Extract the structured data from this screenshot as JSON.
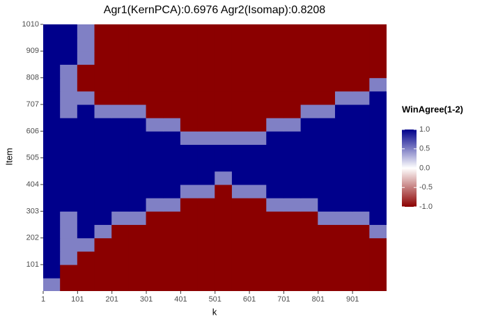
{
  "chart_data": {
    "type": "heatmap",
    "title": "Agr1(KernPCA):0.6976 Agr2(Isomap):0.8208",
    "x_label": "k",
    "y_label": "Item",
    "x": [
      25,
      75,
      125,
      175,
      225,
      275,
      325,
      375,
      425,
      475,
      525,
      575,
      625,
      675,
      725,
      775,
      825,
      875,
      925,
      975
    ],
    "y": [
      25.25,
      75.75,
      126.25,
      176.75,
      227.25,
      277.75,
      328.25,
      378.75,
      429.25,
      479.75,
      530.25,
      580.75,
      631.25,
      681.75,
      732.25,
      782.75,
      833.25,
      883.75,
      934.25,
      984.75
    ],
    "z": [
      [
        0.5,
        -1,
        -1,
        -1,
        -1,
        -1,
        -1,
        -1,
        -1,
        -1,
        -1,
        -1,
        -1,
        -1,
        -1,
        -1,
        -1,
        -1,
        -1,
        -1
      ],
      [
        1,
        -1,
        -1,
        -1,
        -1,
        -1,
        -1,
        -1,
        -1,
        -1,
        -1,
        -1,
        -1,
        -1,
        -1,
        -1,
        -1,
        -1,
        -1,
        -1
      ],
      [
        1,
        0.5,
        -1,
        -1,
        -1,
        -1,
        -1,
        -1,
        -1,
        -1,
        -1,
        -1,
        -1,
        -1,
        -1,
        -1,
        -1,
        -1,
        -1,
        -1
      ],
      [
        1,
        0.5,
        0.5,
        -1,
        -1,
        -1,
        -1,
        -1,
        -1,
        -1,
        -1,
        -1,
        -1,
        -1,
        -1,
        -1,
        -1,
        -1,
        -1,
        -1
      ],
      [
        1,
        0.5,
        1,
        0.5,
        -1,
        -1,
        -1,
        -1,
        -1,
        -1,
        -1,
        -1,
        -1,
        -1,
        -1,
        -1,
        -1,
        -1,
        -1,
        0.5
      ],
      [
        1,
        0.5,
        1,
        1,
        0.5,
        0.5,
        -1,
        -1,
        -1,
        -1,
        -1,
        -1,
        -1,
        -1,
        -1,
        -1,
        0.5,
        0.5,
        0.5,
        1
      ],
      [
        1,
        1,
        1,
        1,
        1,
        1,
        0.5,
        0.5,
        -1,
        -1,
        -1,
        -1,
        -1,
        0.5,
        0.5,
        0.5,
        1,
        1,
        1,
        1
      ],
      [
        1,
        1,
        1,
        1,
        1,
        1,
        1,
        1,
        0.5,
        0.5,
        -1,
        0.5,
        0.5,
        1,
        1,
        1,
        1,
        1,
        1,
        1
      ],
      [
        1,
        1,
        1,
        1,
        1,
        1,
        1,
        1,
        1,
        1,
        0.5,
        1,
        1,
        1,
        1,
        1,
        1,
        1,
        1,
        1
      ],
      [
        1,
        1,
        1,
        1,
        1,
        1,
        1,
        1,
        1,
        1,
        1,
        1,
        1,
        1,
        1,
        1,
        1,
        1,
        1,
        1
      ],
      [
        1,
        1,
        1,
        1,
        1,
        1,
        1,
        1,
        1,
        1,
        1,
        1,
        1,
        1,
        1,
        1,
        1,
        1,
        1,
        1
      ],
      [
        1,
        1,
        1,
        1,
        1,
        1,
        1,
        1,
        0.5,
        0.5,
        0.5,
        0.5,
        0.5,
        1,
        1,
        1,
        1,
        1,
        1,
        1
      ],
      [
        1,
        1,
        1,
        1,
        1,
        1,
        0.5,
        0.5,
        -1,
        -1,
        -1,
        -1,
        -1,
        0.5,
        0.5,
        1,
        1,
        1,
        1,
        1
      ],
      [
        1,
        0.5,
        1,
        0.5,
        0.5,
        0.5,
        -1,
        -1,
        -1,
        -1,
        -1,
        -1,
        -1,
        -1,
        -1,
        0.5,
        0.5,
        1,
        1,
        1
      ],
      [
        1,
        0.5,
        0.5,
        -1,
        -1,
        -1,
        -1,
        -1,
        -1,
        -1,
        -1,
        -1,
        -1,
        -1,
        -1,
        -1,
        -1,
        0.5,
        0.5,
        1
      ],
      [
        1,
        0.5,
        -1,
        -1,
        -1,
        -1,
        -1,
        -1,
        -1,
        -1,
        -1,
        -1,
        -1,
        -1,
        -1,
        -1,
        -1,
        -1,
        -1,
        0.5
      ],
      [
        1,
        0.5,
        -1,
        -1,
        -1,
        -1,
        -1,
        -1,
        -1,
        -1,
        -1,
        -1,
        -1,
        -1,
        -1,
        -1,
        -1,
        -1,
        -1,
        -1
      ],
      [
        1,
        1,
        0.5,
        -1,
        -1,
        -1,
        -1,
        -1,
        -1,
        -1,
        -1,
        -1,
        -1,
        -1,
        -1,
        -1,
        -1,
        -1,
        -1,
        -1
      ],
      [
        1,
        1,
        0.5,
        -1,
        -1,
        -1,
        -1,
        -1,
        -1,
        -1,
        -1,
        -1,
        -1,
        -1,
        -1,
        -1,
        -1,
        -1,
        -1,
        -1
      ],
      [
        1,
        1,
        0.5,
        -1,
        -1,
        -1,
        -1,
        -1,
        -1,
        -1,
        -1,
        -1,
        -1,
        -1,
        -1,
        -1,
        -1,
        -1,
        -1,
        -1
      ]
    ],
    "xlim": [
      1,
      1000
    ],
    "ylim": [
      1,
      1010
    ],
    "xticks": [
      1,
      101,
      201,
      301,
      401,
      501,
      601,
      701,
      801,
      901
    ],
    "yticks": [
      101,
      202,
      303,
      404,
      505,
      606,
      707,
      808,
      909,
      1010
    ],
    "colorbar": {
      "title": "WinAgree(1-2)",
      "lim": [
        -1,
        1
      ],
      "colors": {
        "low": "#8b0000",
        "mid": "#ffffff",
        "high": "#00008b"
      },
      "ticks": [
        {
          "value": 1,
          "label": "1.0"
        },
        0.5,
        {
          "value": 0,
          "label": "0.0"
        },
        -0.5,
        {
          "value": -1,
          "label": "-1.0"
        }
      ]
    }
  }
}
